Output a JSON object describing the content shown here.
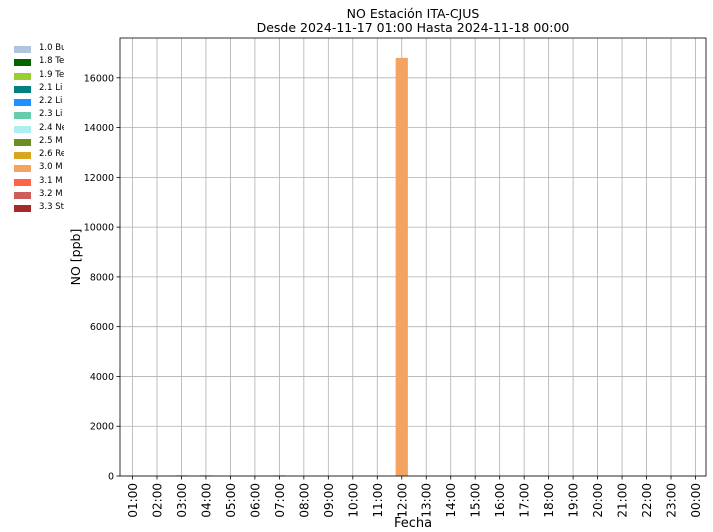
{
  "chart_data": {
    "type": "bar",
    "title_line1": "NO Estación ITA-CJUS",
    "title_line2": "Desde 2024-11-17 01:00 Hasta 2024-11-18 00:00",
    "xlabel": "Fecha",
    "ylabel": "NO [ppb]",
    "ylim": [
      0,
      17600
    ],
    "yticks": [
      0,
      2000,
      4000,
      6000,
      8000,
      10000,
      12000,
      14000,
      16000
    ],
    "grid": true,
    "legend_position": "left-outside",
    "categories": [
      "01:00",
      "02:00",
      "03:00",
      "04:00",
      "05:00",
      "06:00",
      "07:00",
      "08:00",
      "09:00",
      "10:00",
      "11:00",
      "12:00",
      "13:00",
      "14:00",
      "15:00",
      "16:00",
      "17:00",
      "18:00",
      "19:00",
      "20:00",
      "21:00",
      "22:00",
      "23:00",
      "00:00"
    ],
    "series": [
      {
        "name": "1.0 Bu",
        "color": "#b0c4de",
        "values": [
          0,
          0,
          0,
          0,
          0,
          0,
          0,
          0,
          0,
          0,
          0,
          0,
          0,
          0,
          0,
          0,
          0,
          0,
          0,
          0,
          0,
          0,
          0,
          0
        ]
      },
      {
        "name": "1.8 Te",
        "color": "#006400",
        "values": [
          0,
          0,
          0,
          0,
          0,
          0,
          0,
          0,
          0,
          0,
          0,
          0,
          0,
          0,
          0,
          0,
          0,
          0,
          0,
          0,
          0,
          0,
          0,
          0
        ]
      },
      {
        "name": "1.9 Te",
        "color": "#9acd32",
        "values": [
          0,
          0,
          0,
          0,
          0,
          0,
          0,
          0,
          0,
          0,
          0,
          0,
          0,
          0,
          0,
          0,
          0,
          0,
          0,
          0,
          0,
          0,
          0,
          0
        ]
      },
      {
        "name": "2.1 Li",
        "color": "#008080",
        "values": [
          0,
          0,
          0,
          0,
          0,
          0,
          0,
          0,
          0,
          0,
          0,
          0,
          0,
          0,
          0,
          0,
          0,
          0,
          0,
          0,
          0,
          0,
          0,
          0
        ]
      },
      {
        "name": "2.2 Li",
        "color": "#1e90ff",
        "values": [
          0,
          0,
          0,
          0,
          0,
          0,
          0,
          0,
          0,
          0,
          0,
          0,
          0,
          0,
          0,
          0,
          0,
          0,
          0,
          0,
          0,
          0,
          0,
          0
        ]
      },
      {
        "name": "2.3 Li",
        "color": "#66cdaa",
        "values": [
          0,
          0,
          0,
          0,
          0,
          0,
          0,
          0,
          0,
          0,
          0,
          0,
          0,
          0,
          0,
          0,
          0,
          0,
          0,
          0,
          0,
          0,
          0,
          0
        ]
      },
      {
        "name": "2.4 Ne",
        "color": "#afeeee",
        "values": [
          0,
          0,
          0,
          0,
          0,
          0,
          0,
          0,
          0,
          0,
          0,
          0,
          0,
          0,
          0,
          0,
          0,
          0,
          0,
          0,
          0,
          0,
          0,
          0
        ]
      },
      {
        "name": "2.5 M",
        "color": "#6b8e23",
        "values": [
          0,
          0,
          0,
          0,
          0,
          0,
          0,
          0,
          0,
          0,
          0,
          0,
          0,
          0,
          0,
          0,
          0,
          0,
          0,
          0,
          0,
          0,
          0,
          0
        ]
      },
      {
        "name": "2.6 Re",
        "color": "#daa520",
        "values": [
          0,
          0,
          0,
          0,
          0,
          0,
          0,
          0,
          0,
          0,
          0,
          0,
          0,
          0,
          0,
          0,
          0,
          0,
          0,
          0,
          0,
          0,
          0,
          0
        ]
      },
      {
        "name": "3.0 M",
        "color": "#f4a460",
        "values": [
          0,
          0,
          30,
          30,
          0,
          0,
          30,
          0,
          0,
          0,
          0,
          16800,
          0,
          0,
          0,
          0,
          0,
          0,
          0,
          0,
          0,
          0,
          0,
          0
        ]
      },
      {
        "name": "3.1 M",
        "color": "#ff6347",
        "values": [
          0,
          0,
          0,
          0,
          0,
          0,
          0,
          0,
          0,
          0,
          0,
          0,
          0,
          0,
          0,
          0,
          0,
          0,
          0,
          0,
          0,
          0,
          0,
          0
        ]
      },
      {
        "name": "3.2 M",
        "color": "#cd5c5c",
        "values": [
          0,
          0,
          0,
          0,
          0,
          0,
          0,
          0,
          0,
          0,
          0,
          0,
          0,
          0,
          0,
          0,
          0,
          0,
          0,
          0,
          0,
          0,
          0,
          0
        ]
      },
      {
        "name": "3.3 St",
        "color": "#a52a2a",
        "values": [
          0,
          0,
          0,
          0,
          0,
          0,
          0,
          0,
          0,
          0,
          0,
          0,
          0,
          0,
          0,
          0,
          0,
          0,
          0,
          0,
          0,
          0,
          0,
          0
        ]
      }
    ]
  }
}
